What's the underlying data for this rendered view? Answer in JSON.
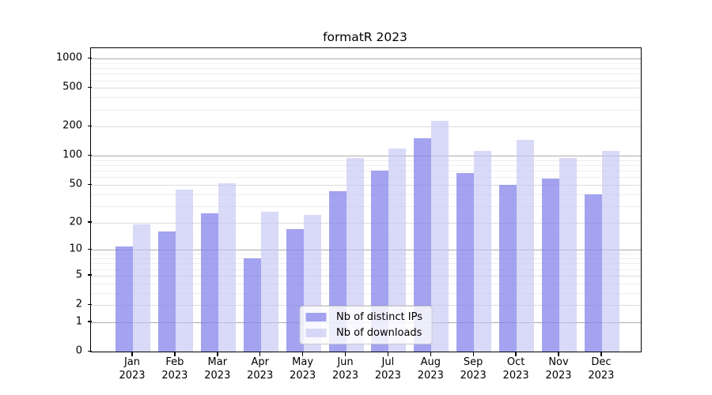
{
  "colors": {
    "series_ips": "rgba(132,132,235,0.75)",
    "series_downloads": "rgba(196,196,244,0.65)",
    "grid_major": "#ababab",
    "grid_mid": "#dcdcdc",
    "grid_minor": "#eeeeee",
    "spine": "#000000",
    "text": "#000000",
    "legend_border": "#c8c8c8",
    "legend_bg": "rgba(255,255,255,0.8)"
  },
  "chart_data": {
    "type": "bar",
    "title": "formatR 2023",
    "xlabel": "",
    "ylabel": "",
    "yscale": "log1p",
    "grid": true,
    "legend_position": "lower center",
    "months": [
      "Jan",
      "Feb",
      "Mar",
      "Apr",
      "May",
      "Jun",
      "Jul",
      "Aug",
      "Sep",
      "Oct",
      "Nov",
      "Dec"
    ],
    "year_label": "2023",
    "categories": [
      "Jan 2023",
      "Feb 2023",
      "Mar 2023",
      "Apr 2023",
      "May 2023",
      "Jun 2023",
      "Jul 2023",
      "Aug 2023",
      "Sep 2023",
      "Oct 2023",
      "Nov 2023",
      "Dec 2023"
    ],
    "series": [
      {
        "name": "Nb of distinct IPs",
        "color_key": "series_ips",
        "values": [
          11,
          16,
          25,
          8,
          17,
          43,
          70,
          153,
          66,
          50,
          58,
          40
        ]
      },
      {
        "name": "Nb of downloads",
        "color_key": "series_downloads",
        "values": [
          19,
          45,
          52,
          26,
          24,
          95,
          120,
          230,
          112,
          147,
          95,
          112
        ]
      }
    ],
    "y_ticks": [
      0,
      1,
      2,
      5,
      10,
      20,
      50,
      100,
      200,
      500,
      1000
    ],
    "ylim": [
      0,
      1280
    ],
    "grid_levels": {
      "major": [
        1,
        10,
        100,
        1000
      ],
      "mid": [
        2,
        5,
        20,
        50,
        200,
        500
      ],
      "minor": [
        3,
        4,
        6,
        7,
        8,
        9,
        30,
        40,
        60,
        70,
        80,
        90,
        300,
        400,
        600,
        700,
        800,
        900
      ]
    }
  }
}
